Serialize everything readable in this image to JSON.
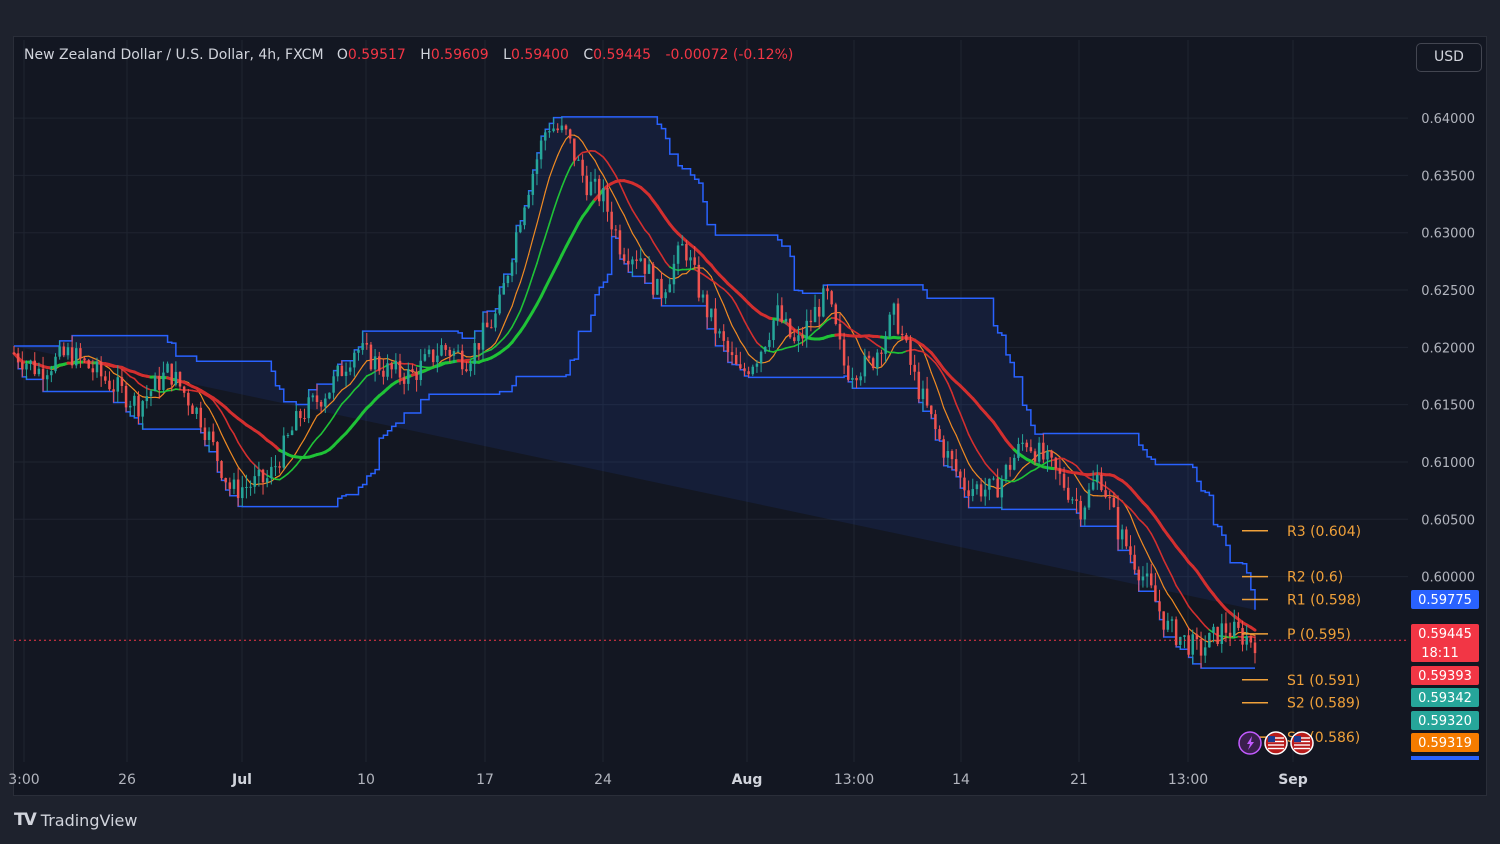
{
  "legend": {
    "symbol": "New Zealand Dollar / U.S. Dollar, 4h, FXCM",
    "open_label": "O",
    "open": "0.59517",
    "high_label": "H",
    "high": "0.59609",
    "low_label": "L",
    "low": "0.59400",
    "close_label": "C",
    "close": "0.59445",
    "change": "-0.00072 (-0.12%)"
  },
  "currency_button": "USD",
  "brand": {
    "logo": "TV",
    "name": "TradingView"
  },
  "colors": {
    "background": "#131722",
    "up": "#26a69a",
    "down": "#ef5350",
    "channel": "#2962ff",
    "ma_green": "#1fc337",
    "ma_red": "#d32f2f",
    "ma_orange": "#ef8a23",
    "pivot": "#f0a13a"
  },
  "chart_data": {
    "type": "candlestick",
    "title": "",
    "ylim": [
      0.584,
      0.6435
    ],
    "y_ticks": [
      "0.64000",
      "0.63500",
      "0.63000",
      "0.62500",
      "0.62000",
      "0.61500",
      "0.61000",
      "0.60500",
      "0.60000"
    ],
    "x_ticks": [
      {
        "label": "3:00",
        "bold": false
      },
      {
        "label": "26",
        "bold": false
      },
      {
        "label": "Jul",
        "bold": true
      },
      {
        "label": "10",
        "bold": false
      },
      {
        "label": "17",
        "bold": false
      },
      {
        "label": "24",
        "bold": false
      },
      {
        "label": "Aug",
        "bold": true
      },
      {
        "label": "13:00",
        "bold": false
      },
      {
        "label": "14",
        "bold": false
      },
      {
        "label": "21",
        "bold": false
      },
      {
        "label": "13:00",
        "bold": false
      },
      {
        "label": "Sep",
        "bold": true
      }
    ],
    "close_path": [
      [
        0,
        0.6195
      ],
      [
        0.02,
        0.618
      ],
      [
        0.045,
        0.6195
      ],
      [
        0.07,
        0.6175
      ],
      [
        0.1,
        0.615
      ],
      [
        0.125,
        0.618
      ],
      [
        0.15,
        0.614
      ],
      [
        0.175,
        0.6075
      ],
      [
        0.205,
        0.6085
      ],
      [
        0.23,
        0.614
      ],
      [
        0.255,
        0.6165
      ],
      [
        0.275,
        0.62
      ],
      [
        0.3,
        0.618
      ],
      [
        0.32,
        0.6175
      ],
      [
        0.345,
        0.62
      ],
      [
        0.365,
        0.619
      ],
      [
        0.39,
        0.623
      ],
      [
        0.41,
        0.6325
      ],
      [
        0.43,
        0.6395
      ],
      [
        0.445,
        0.6385
      ],
      [
        0.46,
        0.6345
      ],
      [
        0.475,
        0.633
      ],
      [
        0.49,
        0.6285
      ],
      [
        0.505,
        0.628
      ],
      [
        0.52,
        0.6245
      ],
      [
        0.54,
        0.629
      ],
      [
        0.555,
        0.624
      ],
      [
        0.57,
        0.6205
      ],
      [
        0.585,
        0.6175
      ],
      [
        0.6,
        0.6195
      ],
      [
        0.615,
        0.623
      ],
      [
        0.63,
        0.62
      ],
      [
        0.645,
        0.623
      ],
      [
        0.655,
        0.6245
      ],
      [
        0.67,
        0.618
      ],
      [
        0.69,
        0.6185
      ],
      [
        0.71,
        0.623
      ],
      [
        0.725,
        0.6175
      ],
      [
        0.745,
        0.612
      ],
      [
        0.765,
        0.608
      ],
      [
        0.79,
        0.6075
      ],
      [
        0.815,
        0.612
      ],
      [
        0.84,
        0.609
      ],
      [
        0.86,
        0.606
      ],
      [
        0.875,
        0.609
      ],
      [
        0.89,
        0.604
      ],
      [
        0.91,
        0.6
      ],
      [
        0.93,
        0.5955
      ],
      [
        0.955,
        0.5935
      ],
      [
        0.975,
        0.5955
      ],
      [
        1.0,
        0.5944
      ]
    ],
    "pivots": [
      {
        "label": "R3 (0.604)",
        "value": 0.604
      },
      {
        "label": "R2 (0.6)",
        "value": 0.6
      },
      {
        "label": "R1 (0.598)",
        "value": 0.598
      },
      {
        "label": "P (0.595)",
        "value": 0.595
      },
      {
        "label": "S1 (0.591)",
        "value": 0.591
      },
      {
        "label": "S2 (0.589)",
        "value": 0.589
      },
      {
        "label": "S3 (0.586)",
        "value": 0.586
      }
    ],
    "price_tags": [
      {
        "label": "0.59775",
        "color": "#2962ff"
      },
      {
        "label": "0.59445",
        "color": "#f23645",
        "sub": "18:11"
      },
      {
        "label": "0.59393",
        "color": "#f23645"
      },
      {
        "label": "0.59342",
        "color": "#26a69a"
      },
      {
        "label": "0.59320",
        "color": "#26a69a"
      },
      {
        "label": "0.59319",
        "color": "#f57c00"
      }
    ],
    "event_icons": [
      "lightning-icon",
      "us-flag-icon",
      "us-flag-icon"
    ]
  }
}
